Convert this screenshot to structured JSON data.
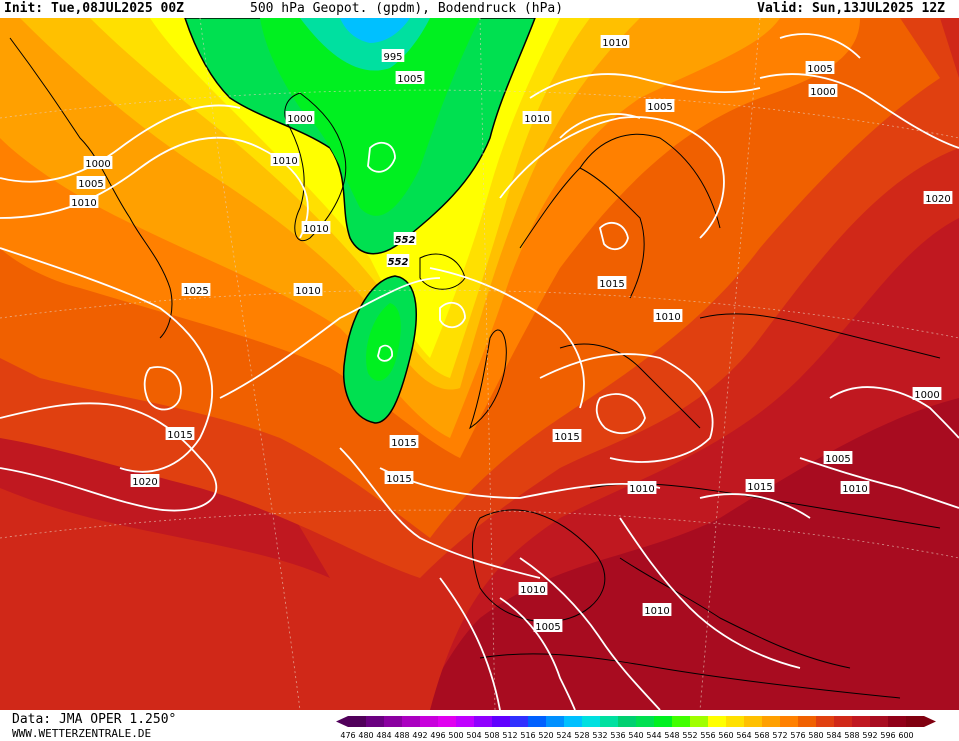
{
  "header": {
    "init": "Init: Tue,08JUL2025 00Z",
    "title": "500 hPa Geopot. (gpdm), Bodendruck (hPa)",
    "valid": "Valid: Sun,13JUL2025 12Z"
  },
  "footer": {
    "data": "Data: JMA OPER 1.250°",
    "site": "WWW.WETTERZENTRALE.DE"
  },
  "legend": {
    "values": [
      "476",
      "480",
      "484",
      "488",
      "492",
      "496",
      "500",
      "504",
      "508",
      "512",
      "516",
      "520",
      "524",
      "528",
      "532",
      "536",
      "540",
      "544",
      "548",
      "552",
      "556",
      "560",
      "564",
      "568",
      "572",
      "576",
      "580",
      "584",
      "588",
      "592",
      "596",
      "600"
    ],
    "colors": [
      "#50005a",
      "#6a0080",
      "#8a00a0",
      "#aa00c0",
      "#c800dc",
      "#e000f0",
      "#c000ff",
      "#9000ff",
      "#6000ff",
      "#3030ff",
      "#0060ff",
      "#0090ff",
      "#00c0ff",
      "#00e0e0",
      "#00e0a0",
      "#00d070",
      "#00e050",
      "#00f020",
      "#40ff00",
      "#a0ff00",
      "#ffff00",
      "#ffe000",
      "#ffc000",
      "#ffa000",
      "#ff8000",
      "#f06000",
      "#e04010",
      "#d02818",
      "#c01820",
      "#a80c20",
      "#900018",
      "#800010"
    ]
  },
  "contour_labels": {
    "pressure": [
      "1000",
      "1005",
      "1010",
      "995",
      "1005",
      "1000",
      "1010",
      "1010",
      "1005",
      "1000",
      "1010",
      "1020",
      "1005",
      "1010",
      "1025",
      "1010",
      "1015",
      "1010",
      "1020",
      "1015",
      "1015",
      "1010",
      "1015",
      "1000",
      "1005",
      "1015",
      "1010",
      "1015",
      "1010",
      "1010",
      "1005"
    ],
    "geopotential": [
      "552",
      "552"
    ]
  }
}
